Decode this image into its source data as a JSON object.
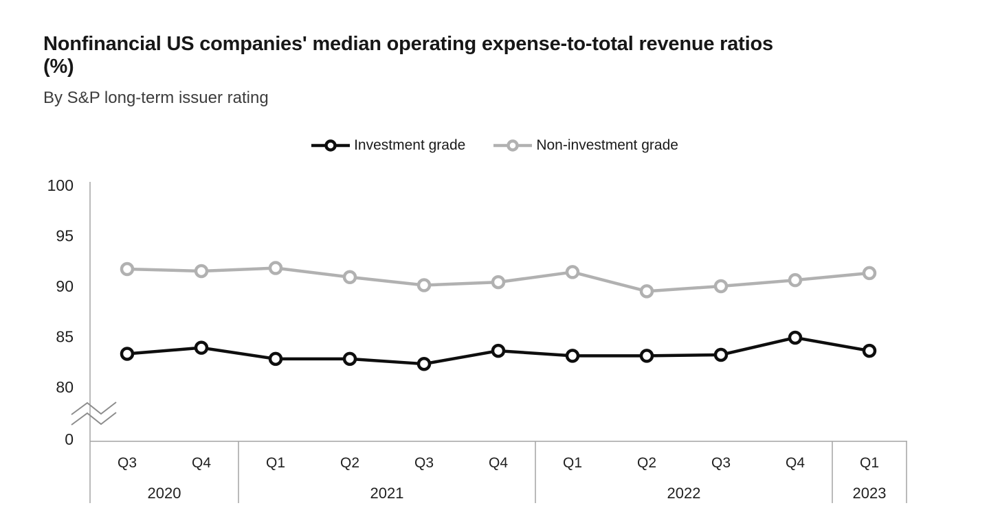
{
  "chart": {
    "title": "Nonfinancial US companies' median operating expense-to-total revenue ratios (%)",
    "subtitle": "By S&P long-term issuer rating",
    "legend": [
      {
        "label": "Investment grade",
        "color": "#0e0e0e"
      },
      {
        "label": "Non-investment grade",
        "color": "#b1b1b1"
      }
    ]
  },
  "chart_data": {
    "type": "line",
    "categories": [
      "Q3 2020",
      "Q4 2020",
      "Q1 2021",
      "Q2 2021",
      "Q3 2021",
      "Q4 2021",
      "Q1 2022",
      "Q2 2022",
      "Q3 2022",
      "Q4 2022",
      "Q1 2023"
    ],
    "quarter_labels": [
      "Q3",
      "Q4",
      "Q1",
      "Q2",
      "Q3",
      "Q4",
      "Q1",
      "Q2",
      "Q3",
      "Q4",
      "Q1"
    ],
    "year_groups": [
      {
        "year": "2020",
        "quarters": 2
      },
      {
        "year": "2021",
        "quarters": 4
      },
      {
        "year": "2022",
        "quarters": 4
      },
      {
        "year": "2023",
        "quarters": 1
      }
    ],
    "series": [
      {
        "name": "Non-investment grade",
        "color": "#b1b1b1",
        "values": [
          91.7,
          91.5,
          91.8,
          90.9,
          90.1,
          90.4,
          91.4,
          89.5,
          90.0,
          90.6,
          91.3
        ]
      },
      {
        "name": "Investment grade",
        "color": "#0e0e0e",
        "values": [
          83.3,
          83.9,
          82.8,
          82.8,
          82.3,
          83.6,
          83.1,
          83.1,
          83.2,
          84.9,
          83.6
        ]
      }
    ],
    "y_ticks": [
      100,
      95,
      90,
      85,
      80,
      0
    ],
    "y_axis_break": true,
    "ylim_display": [
      80,
      100
    ],
    "grid": false,
    "legend_position": "top-center",
    "axis_color": "#a3a3a3",
    "marker_style": "open-circle"
  }
}
